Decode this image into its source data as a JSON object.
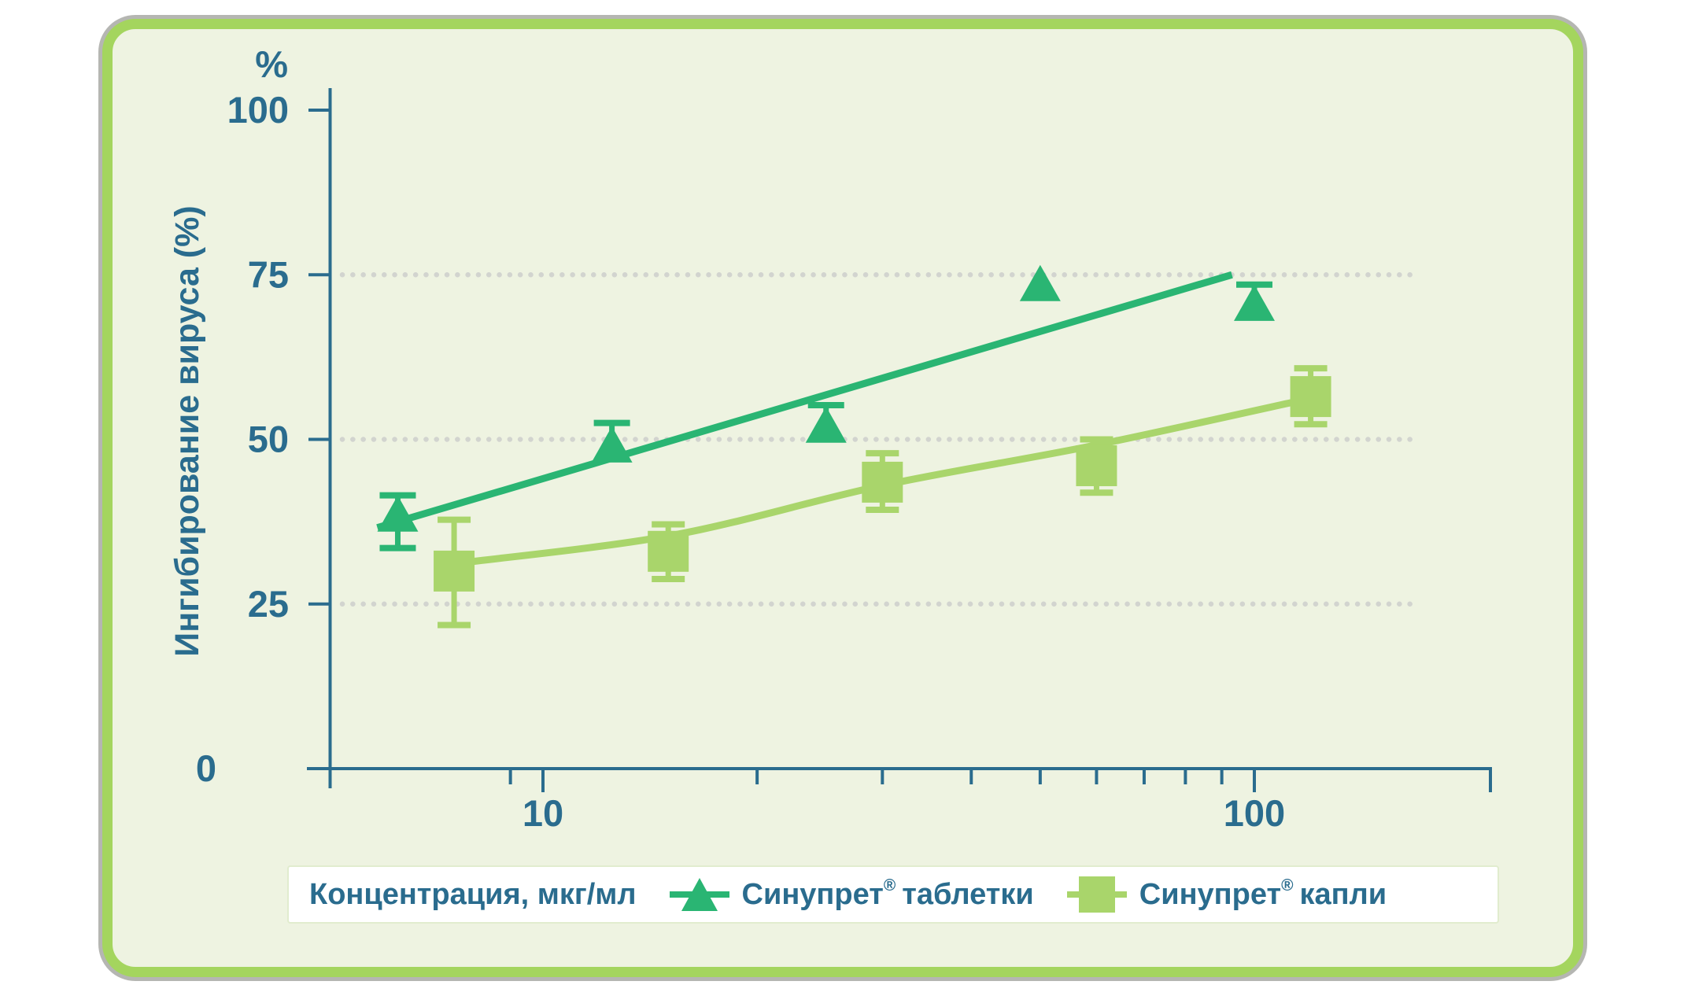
{
  "colors": {
    "axis_teal": "#2a6c8e",
    "tablets_green": "#2ab573",
    "drops_green": "#a9d56b",
    "frame_green": "#a4d55e",
    "background": "#eef3e1",
    "grid_gray": "#d2d4cf",
    "legend_bg": "#ffffff"
  },
  "axis": {
    "percent_symbol": "%",
    "y_label": "Ингибирование вируса (%)"
  },
  "legend": {
    "x_label": "Концентрация, мкг/мл",
    "series": [
      {
        "brand": "Синупрет",
        "reg": "®",
        "variant": "таблетки"
      },
      {
        "brand": "Синупрет",
        "reg": "®",
        "variant": "капли"
      }
    ]
  },
  "chart_data": {
    "type": "scatter",
    "title": "",
    "xlabel": "Концентрация, мкг/мл",
    "ylabel": "Ингибирование вируса (%)",
    "x_scale": "log",
    "xlim": [
      4.6,
      210
    ],
    "ylim": [
      0,
      100
    ],
    "x_major_ticks": [
      10,
      100
    ],
    "x_minor_ticks": [
      9,
      20,
      30,
      40,
      50,
      60,
      70,
      80,
      90
    ],
    "y_ticks": [
      0,
      25,
      50,
      75,
      100
    ],
    "gridlines_y": [
      25,
      50,
      75
    ],
    "grid": "dotted",
    "legend_position": "bottom",
    "series": [
      {
        "name": "Синупрет® таблетки",
        "marker": "triangle",
        "color": "#2ab573",
        "x": [
          6.25,
          12.5,
          25,
          50,
          100
        ],
        "y": [
          38.5,
          49,
          52,
          73.5,
          70.5
        ],
        "err_up": [
          3,
          3.5,
          3.2,
          null,
          3
        ],
        "err_down": [
          5,
          null,
          null,
          null,
          null
        ],
        "trend": {
          "shape": "linear",
          "points": [
            [
              5.85,
              36.6
            ],
            [
              93,
              75
            ]
          ]
        }
      },
      {
        "name": "Синупрет® капли",
        "marker": "square",
        "color": "#a9d56b",
        "x": [
          7.5,
          15,
          30,
          60,
          120
        ],
        "y": [
          30,
          33,
          43.5,
          46,
          56.5
        ],
        "err_up": [
          7.8,
          4.1,
          4.4,
          4.0,
          4.3
        ],
        "err_down": [
          8.2,
          4.2,
          4.2,
          4.1,
          4.2
        ],
        "trend": {
          "shape": "smooth",
          "points": [
            [
              7.75,
              31.3
            ],
            [
              15.3,
              35.5
            ],
            [
              30,
              43
            ],
            [
              59,
              49
            ],
            [
              115,
              55.8
            ]
          ]
        }
      }
    ]
  }
}
